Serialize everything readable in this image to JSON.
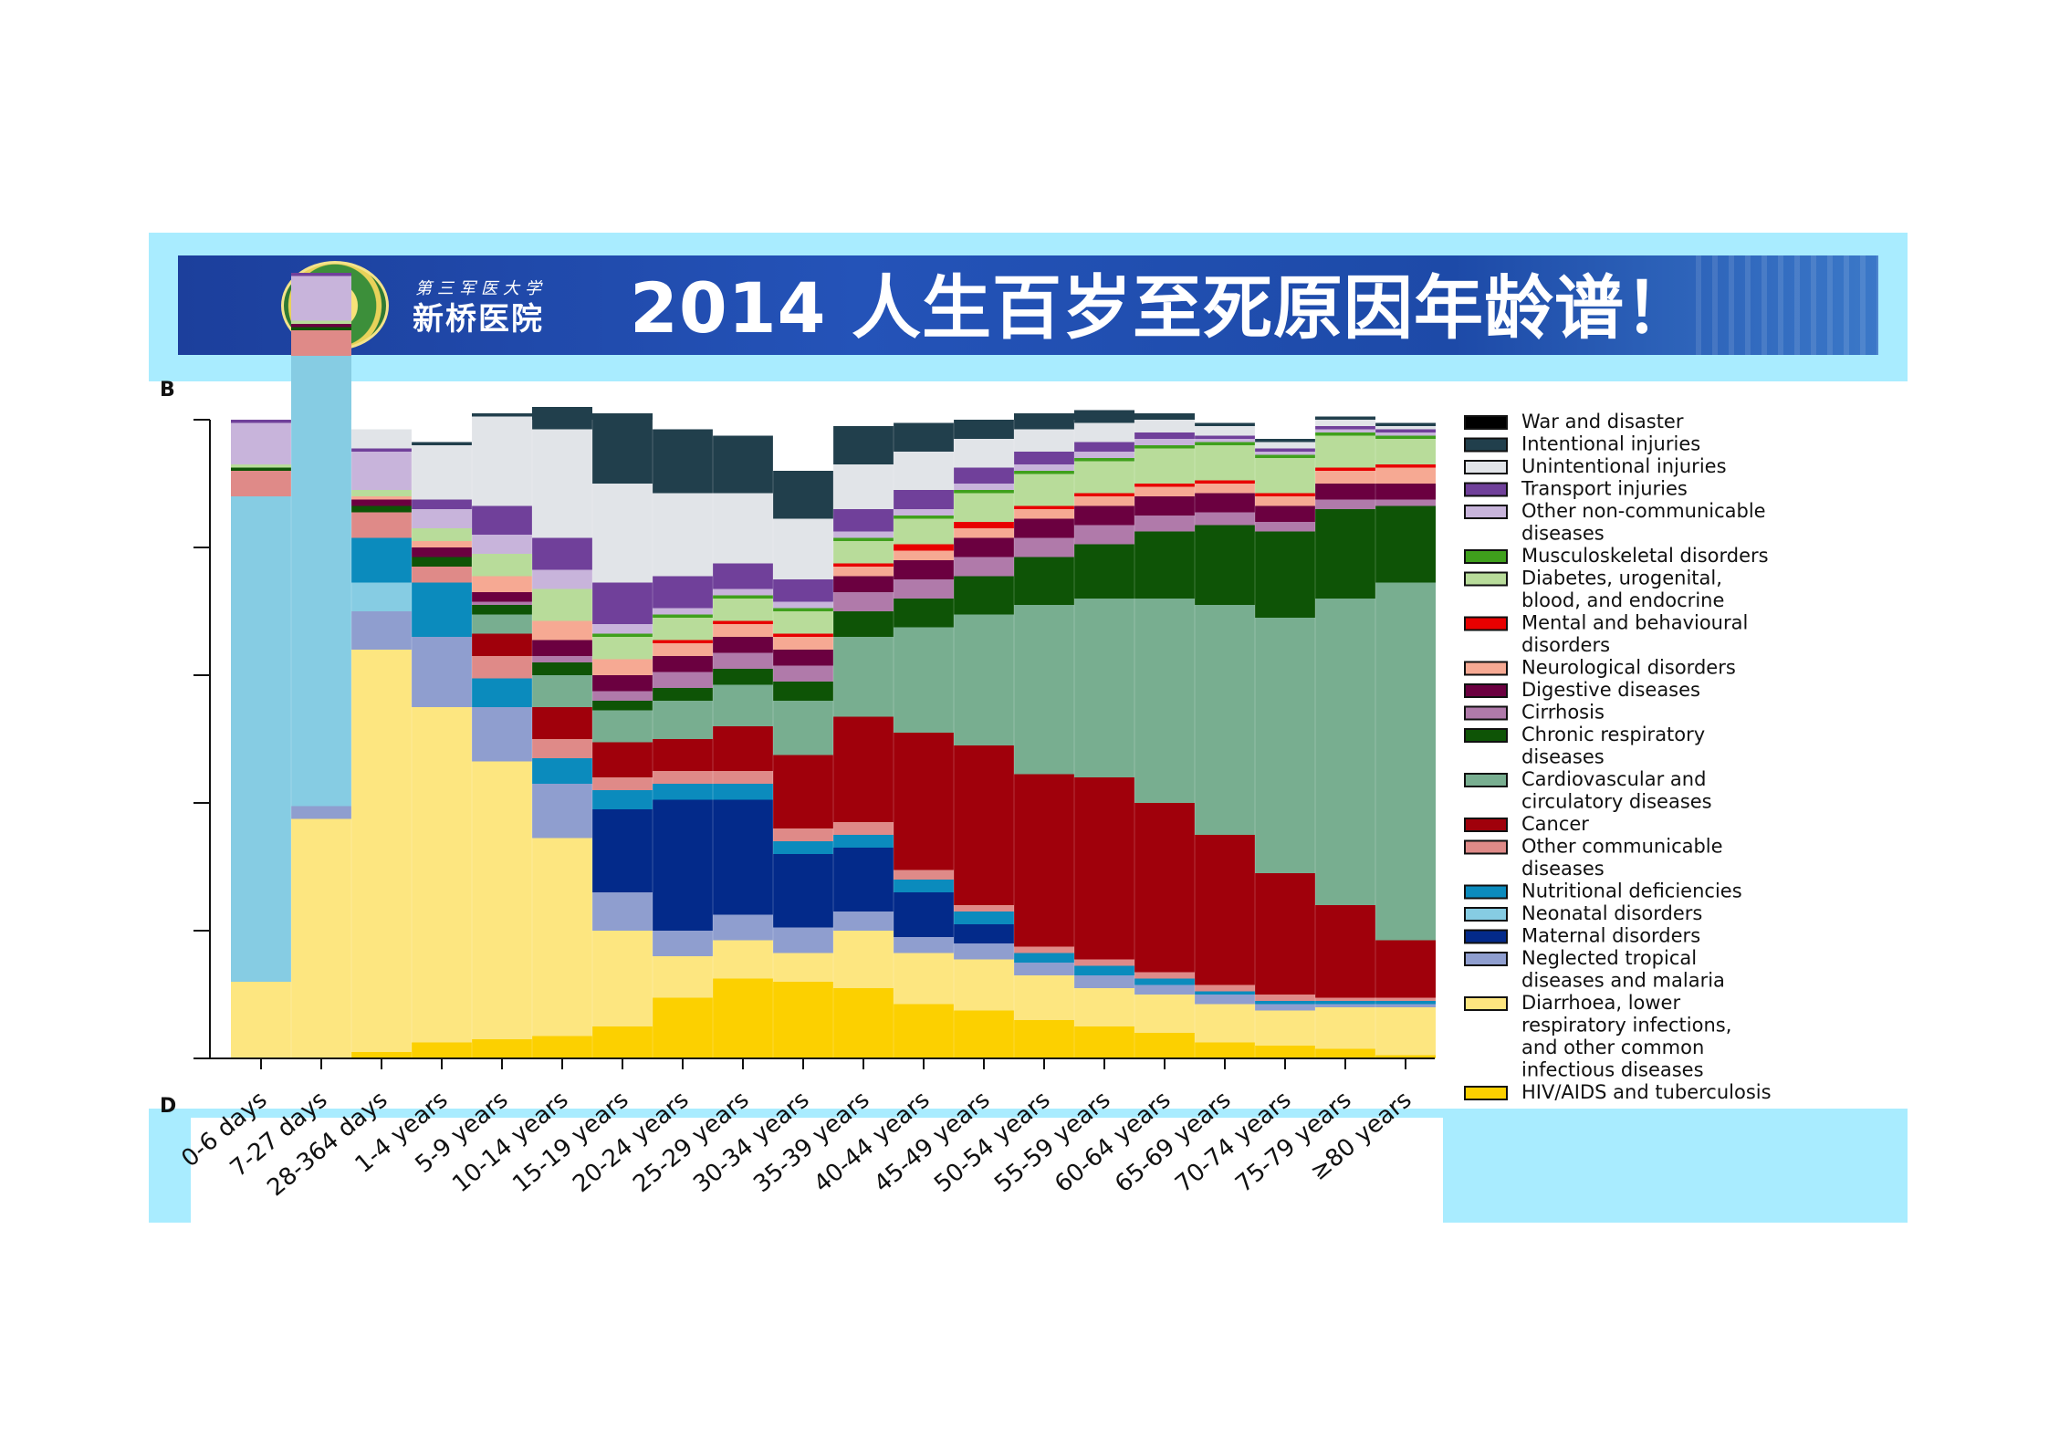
{
  "header": {
    "hospital_small": "第三军医大学",
    "hospital_name": "新桥医院",
    "title": "2014 人生百岁至死原因年龄谱！"
  },
  "panels": {
    "top": "B",
    "bottom": "D"
  },
  "colors": {
    "panel_bg": "#a9ecff",
    "banner": "#2453b8"
  },
  "chart_data": {
    "type": "area",
    "stacked": true,
    "normalized": true,
    "ylim": [
      0,
      100
    ],
    "ylabel": "",
    "xlabel": "",
    "title": "",
    "categories": [
      "0-6 days",
      "7-27 days",
      "28-364 days",
      "1-4 years",
      "5-9 years",
      "10-14 years",
      "15-19 years",
      "20-24 years",
      "25-29 years",
      "30-34 years",
      "35-39 years",
      "40-44 years",
      "45-49 years",
      "50-54 years",
      "55-59 years",
      "60-64 years",
      "65-69 years",
      "70-74 years",
      "75-79 years",
      "≥80 years"
    ],
    "series": [
      {
        "name": "HIV/AIDS and tuberculosis",
        "color": "#fcd000",
        "values": [
          0,
          0,
          1,
          2.5,
          3,
          3.5,
          5,
          9.5,
          12.5,
          12,
          11,
          8.5,
          7.5,
          6,
          5,
          4,
          2.5,
          2,
          1.5,
          0.5
        ]
      },
      {
        "name": "Diarrhoea, lower respiratory infections, and other common infectious diseases",
        "color": "#fde680",
        "values": [
          12,
          37.5,
          63,
          52.5,
          43.5,
          31,
          15,
          6.5,
          6,
          4.5,
          9,
          8,
          8,
          7,
          6,
          6,
          6,
          5.5,
          6.5,
          7.5
        ]
      },
      {
        "name": "Neglected tropical diseases and malaria",
        "color": "#8f9ecf",
        "values": [
          0,
          2,
          6,
          11,
          8.5,
          8.5,
          6,
          4,
          4,
          4,
          3,
          2.5,
          2.5,
          2,
          2,
          1.5,
          1.5,
          1,
          0.5,
          0.5
        ]
      },
      {
        "name": "Maternal disorders",
        "color": "#032a8a",
        "values": [
          0,
          0,
          0,
          0,
          0,
          0,
          13,
          20.5,
          18,
          11.5,
          10,
          7,
          3,
          0,
          0,
          0,
          0,
          0,
          0,
          0
        ]
      },
      {
        "name": "Neonatal disorders",
        "color": "#86cce3",
        "values": [
          76,
          70.5,
          4.5,
          0,
          0,
          0,
          0,
          0,
          0,
          0,
          0,
          0,
          0,
          0,
          0,
          0,
          0,
          0,
          0,
          0
        ]
      },
      {
        "name": "Nutritional deficiencies",
        "color": "#0b8bbd",
        "values": [
          0,
          0,
          7,
          8.5,
          4.5,
          4,
          3,
          2.5,
          2.5,
          2,
          2,
          2,
          2,
          1.5,
          1.5,
          1,
          0.5,
          0.5,
          0.5,
          0.5
        ]
      },
      {
        "name": "Other communicable diseases",
        "color": "#df8a88",
        "values": [
          4,
          4,
          4,
          2.5,
          3.5,
          3,
          2,
          2,
          2,
          2,
          2,
          1.5,
          1,
          1,
          1,
          1,
          1,
          1,
          0.5,
          0.5
        ]
      },
      {
        "name": "Cancer",
        "color": "#a0000b",
        "values": [
          0,
          0,
          0,
          0,
          3.5,
          5,
          5.5,
          5,
          7,
          11.5,
          16.5,
          21.5,
          25,
          27,
          28.5,
          26.5,
          23.5,
          19,
          14.5,
          9
        ]
      },
      {
        "name": "Cardiovascular and circulatory diseases",
        "color": "#78ae90",
        "values": [
          0,
          0,
          0,
          0,
          3,
          5,
          5,
          6,
          6.5,
          8.5,
          12.5,
          16.5,
          20.5,
          26.5,
          28,
          32,
          36,
          40,
          48,
          56
        ]
      },
      {
        "name": "Chronic respiratory diseases",
        "color": "#0e5406",
        "values": [
          0.5,
          0.5,
          1,
          1.5,
          1.5,
          2,
          1.5,
          2,
          2.5,
          3,
          4,
          4.5,
          6,
          7.5,
          8.5,
          10.5,
          12.5,
          13.5,
          14,
          12
        ]
      },
      {
        "name": "Cirrhosis",
        "color": "#b07aaa",
        "values": [
          0,
          0,
          0,
          0,
          0.5,
          1,
          1.5,
          2.5,
          2.5,
          2.5,
          3,
          3,
          3,
          3,
          3,
          2.5,
          2,
          1.5,
          1.5,
          1
        ]
      },
      {
        "name": "Digestive diseases",
        "color": "#6b0040",
        "values": [
          0,
          0.5,
          1,
          1.5,
          1.5,
          2.5,
          2.5,
          2.5,
          2.5,
          2.5,
          2.5,
          3,
          3,
          3,
          3,
          3,
          3,
          2.5,
          2.5,
          2.5
        ]
      },
      {
        "name": "Neurological disorders",
        "color": "#f6a993",
        "values": [
          0,
          0,
          0.5,
          1,
          2.5,
          3,
          2.5,
          2,
          2,
          2,
          1.5,
          1.5,
          1.5,
          1.5,
          1.5,
          1.5,
          1.5,
          1.5,
          2,
          2.5
        ]
      },
      {
        "name": "Mental and behavioural disorders",
        "color": "#e80000",
        "values": [
          0,
          0,
          0,
          0,
          0,
          0,
          0,
          0.5,
          0.5,
          0.5,
          0.5,
          1,
          1,
          0.5,
          0.5,
          0.5,
          0.5,
          0.5,
          0.5,
          0.5
        ]
      },
      {
        "name": "Diabetes, urogenital, blood, and endocrine",
        "color": "#b8dc9a",
        "values": [
          0.5,
          0.5,
          1,
          2,
          3.5,
          5,
          3.5,
          3.5,
          3.5,
          3.5,
          3.5,
          4,
          4.5,
          5,
          5,
          5.5,
          5.5,
          5.5,
          5,
          4
        ]
      },
      {
        "name": "Musculoskeletal disorders",
        "color": "#3fa01c",
        "values": [
          0,
          0,
          0,
          0,
          0,
          0,
          0.5,
          0.5,
          0.5,
          0.5,
          0.5,
          0.5,
          0.5,
          0.5,
          0.5,
          0.5,
          0.5,
          0.5,
          0.5,
          0.5
        ]
      },
      {
        "name": "Other non-communicable diseases",
        "color": "#c8b4db",
        "values": [
          6.5,
          7,
          6,
          3,
          3,
          3,
          1.5,
          1,
          1,
          1,
          1,
          1,
          1,
          1,
          1,
          1,
          0.5,
          0.5,
          0.5,
          0.5
        ]
      },
      {
        "name": "Transport injuries",
        "color": "#70409a",
        "values": [
          0.5,
          0.5,
          0.5,
          1.5,
          4.5,
          5,
          6.5,
          5,
          4,
          3.5,
          3.5,
          3,
          2.5,
          2,
          1.5,
          1,
          0.5,
          0.5,
          0.5,
          0.5
        ]
      },
      {
        "name": "Unintentional injuries",
        "color": "#e1e4e8",
        "values": [
          0,
          0,
          3,
          8.5,
          14,
          17,
          15.5,
          13,
          11,
          9.5,
          7,
          6,
          4.5,
          3.5,
          3,
          2,
          1.5,
          1,
          1,
          0.5
        ]
      },
      {
        "name": "Intentional injuries",
        "color": "#213f4c",
        "values": [
          0,
          0,
          0,
          0.5,
          0.5,
          3.5,
          11,
          10,
          9,
          7.5,
          6,
          4.5,
          3,
          2.5,
          2,
          1,
          0.5,
          0.5,
          0.5,
          0.5
        ]
      },
      {
        "name": "War and disaster",
        "color": "#000000",
        "values": [
          0,
          0,
          0,
          0,
          0,
          0,
          0,
          0,
          0,
          0,
          0,
          0,
          0,
          0,
          0,
          0,
          0,
          0,
          0,
          0
        ]
      }
    ],
    "legend": [
      {
        "label": "War and disaster",
        "color": "#000000"
      },
      {
        "label": "Intentional injuries",
        "color": "#213f4c"
      },
      {
        "label": "Unintentional injuries",
        "color": "#e1e4e8"
      },
      {
        "label": "Transport injuries",
        "color": "#70409a"
      },
      {
        "label": "Other non-communicable diseases",
        "lines": [
          "Other non-communicable",
          "diseases"
        ],
        "color": "#c8b4db"
      },
      {
        "label": "Musculoskeletal disorders",
        "color": "#3fa01c"
      },
      {
        "label": "Diabetes, urogenital, blood, and endocrine",
        "lines": [
          "Diabetes, urogenital,",
          "blood, and endocrine"
        ],
        "color": "#b8dc9a"
      },
      {
        "label": "Mental and behavioural disorders",
        "lines": [
          "Mental and behavioural",
          "disorders"
        ],
        "color": "#e80000"
      },
      {
        "label": "Neurological disorders",
        "color": "#f6a993"
      },
      {
        "label": "Digestive diseases",
        "color": "#6b0040"
      },
      {
        "label": "Cirrhosis",
        "color": "#b07aaa"
      },
      {
        "label": "Chronic respiratory diseases",
        "lines": [
          "Chronic respiratory",
          "diseases"
        ],
        "color": "#0e5406"
      },
      {
        "label": "Cardiovascular and circulatory diseases",
        "lines": [
          "Cardiovascular and",
          "circulatory diseases"
        ],
        "color": "#78ae90"
      },
      {
        "label": "Cancer",
        "color": "#a0000b"
      },
      {
        "label": "Other communicable diseases",
        "lines": [
          "Other communicable",
          "diseases"
        ],
        "color": "#df8a88"
      },
      {
        "label": "Nutritional deficiencies",
        "color": "#0b8bbd"
      },
      {
        "label": "Neonatal disorders",
        "color": "#86cce3"
      },
      {
        "label": "Maternal disorders",
        "color": "#032a8a"
      },
      {
        "label": "Neglected tropical diseases and malaria",
        "lines": [
          "Neglected tropical",
          "diseases and malaria"
        ],
        "color": "#8f9ecf"
      },
      {
        "label": "Diarrhoea, lower respiratory infections, and other common infectious diseases",
        "lines": [
          "Diarrhoea, lower",
          "respiratory infections,",
          "and other common",
          "infectious diseases"
        ],
        "color": "#fde680"
      },
      {
        "label": "HIV/AIDS and tuberculosis",
        "color": "#fcd000"
      }
    ]
  }
}
